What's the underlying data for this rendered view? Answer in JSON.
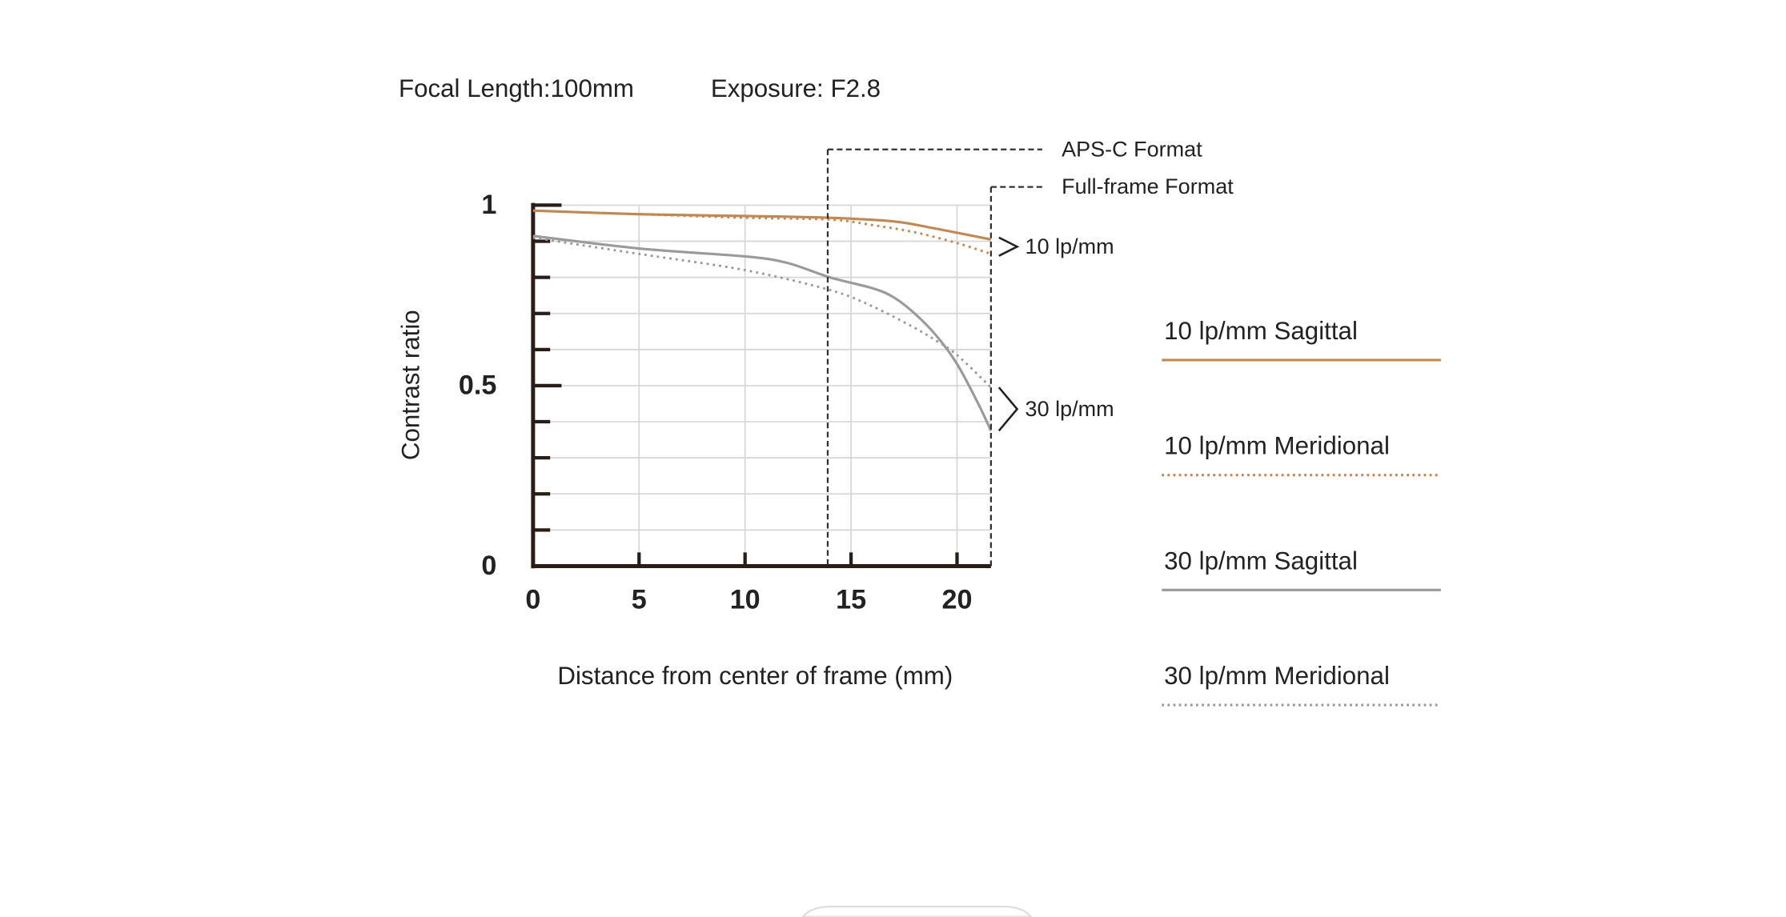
{
  "chart_data": {
    "type": "line",
    "header": [
      "Focal Length:100mm",
      "Exposure: F2.8"
    ],
    "ylabel": "Contrast ratio",
    "xlabel": "Distance from center of frame (mm)",
    "xlim": [
      0,
      21.6
    ],
    "ylim": [
      0,
      1
    ],
    "xticks": [
      0,
      5,
      10,
      15,
      20
    ],
    "yticks": [
      0,
      0.5,
      1
    ],
    "yminorticks": [
      0.1,
      0.2,
      0.3,
      0.4,
      0.6,
      0.7,
      0.8,
      0.9
    ],
    "grid": true,
    "series": [
      {
        "name": "10 lp/mm Sagittal",
        "color": "#c8864a",
        "style": "solid",
        "x": [
          0,
          5,
          10,
          14,
          17,
          19,
          21.6
        ],
        "values": [
          0.985,
          0.975,
          0.97,
          0.965,
          0.955,
          0.935,
          0.905
        ]
      },
      {
        "name": "10 lp/mm Meridional",
        "color": "#c8864a",
        "style": "dotted",
        "x": [
          0,
          5,
          10,
          14,
          16,
          18,
          20,
          21.6
        ],
        "values": [
          0.985,
          0.975,
          0.965,
          0.96,
          0.945,
          0.925,
          0.895,
          0.865
        ]
      },
      {
        "name": "30 lp/mm Sagittal",
        "color": "#9a9a9a",
        "style": "solid",
        "x": [
          0,
          5,
          10,
          12,
          14,
          16,
          17,
          18,
          19,
          20,
          21,
          21.6
        ],
        "values": [
          0.915,
          0.88,
          0.858,
          0.84,
          0.8,
          0.77,
          0.745,
          0.7,
          0.64,
          0.56,
          0.45,
          0.375
        ]
      },
      {
        "name": "30 lp/mm Meridional",
        "color": "#9a9a9a",
        "style": "dotted",
        "x": [
          0,
          5,
          10,
          14,
          16,
          18,
          19,
          20,
          21.6
        ],
        "values": [
          0.91,
          0.865,
          0.82,
          0.765,
          0.72,
          0.66,
          0.625,
          0.585,
          0.495
        ]
      }
    ],
    "group_labels": [
      "10 lp/mm",
      "30 lp/mm"
    ],
    "annotations": [
      {
        "text": "APS-C Format",
        "x": 13.9
      },
      {
        "text": "Full-frame Format",
        "x": 21.6
      }
    ]
  }
}
